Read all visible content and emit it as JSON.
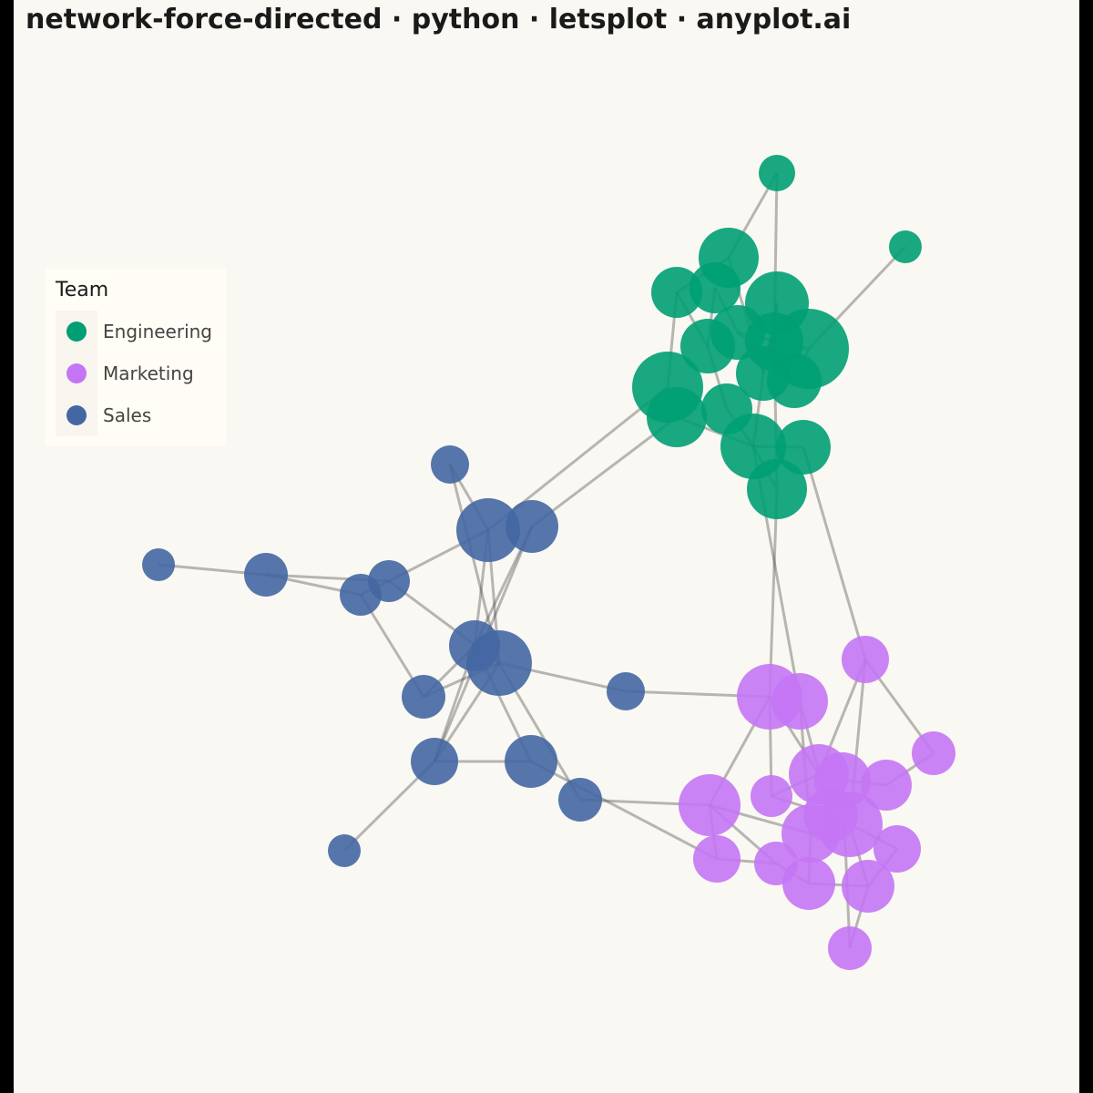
{
  "chart_data": {
    "type": "network",
    "title": "network-force-directed · python · letsplot · anyplot.ai",
    "legend_title": "Team",
    "groups": [
      {
        "name": "Engineering",
        "color": "#009e73"
      },
      {
        "name": "Marketing",
        "color": "#c475f5"
      },
      {
        "name": "Sales",
        "color": "#4467a3"
      }
    ],
    "nodes": [
      0,
      0,
      0,
      0,
      0,
      0,
      0,
      0,
      0,
      0,
      0,
      0,
      0,
      0,
      0,
      0,
      0,
      0,
      2,
      2,
      2,
      2,
      2,
      2,
      2,
      2,
      2,
      2,
      2,
      2,
      2,
      2,
      2,
      1,
      1,
      1,
      1,
      1,
      1,
      1,
      1,
      1,
      1,
      1,
      1,
      1,
      1,
      1,
      1,
      1,
      1
    ],
    "edges": [
      [
        0,
        2
      ],
      [
        0,
        9
      ],
      [
        1,
        8
      ],
      [
        2,
        4
      ],
      [
        2,
        10
      ],
      [
        4,
        12
      ],
      [
        4,
        7
      ],
      [
        3,
        6
      ],
      [
        5,
        9
      ],
      [
        6,
        11
      ],
      [
        7,
        13
      ],
      [
        8,
        11
      ],
      [
        12,
        14
      ],
      [
        13,
        15
      ],
      [
        15,
        17
      ],
      [
        16,
        15
      ],
      [
        9,
        17
      ],
      [
        10,
        15
      ],
      [
        14,
        15
      ],
      [
        3,
        7
      ],
      [
        5,
        10
      ],
      [
        6,
        8
      ],
      [
        12,
        19
      ],
      [
        14,
        20
      ],
      [
        17,
        34
      ],
      [
        15,
        35
      ],
      [
        16,
        33
      ],
      [
        18,
        19
      ],
      [
        18,
        26
      ],
      [
        19,
        23
      ],
      [
        19,
        25
      ],
      [
        19,
        26
      ],
      [
        20,
        25
      ],
      [
        20,
        29
      ],
      [
        21,
        22
      ],
      [
        22,
        24
      ],
      [
        23,
        24
      ],
      [
        23,
        26
      ],
      [
        22,
        23
      ],
      [
        24,
        28
      ],
      [
        25,
        30
      ],
      [
        26,
        27
      ],
      [
        26,
        28
      ],
      [
        26,
        29
      ],
      [
        26,
        31
      ],
      [
        28,
        25
      ],
      [
        29,
        30
      ],
      [
        29,
        32
      ],
      [
        29,
        25
      ],
      [
        27,
        34
      ],
      [
        30,
        46
      ],
      [
        31,
        41
      ],
      [
        33,
        36
      ],
      [
        33,
        43
      ],
      [
        33,
        37
      ],
      [
        34,
        41
      ],
      [
        34,
        37
      ],
      [
        35,
        42
      ],
      [
        35,
        44
      ],
      [
        36,
        39
      ],
      [
        37,
        38
      ],
      [
        38,
        39
      ],
      [
        37,
        40
      ],
      [
        40,
        42
      ],
      [
        41,
        46
      ],
      [
        41,
        47
      ],
      [
        41,
        44
      ],
      [
        42,
        43
      ],
      [
        43,
        45
      ],
      [
        43,
        49
      ],
      [
        44,
        48
      ],
      [
        45,
        49
      ],
      [
        48,
        49
      ],
      [
        49,
        50
      ],
      [
        47,
        48
      ],
      [
        38,
        50
      ],
      [
        34,
        40
      ],
      [
        46,
        47
      ]
    ]
  }
}
